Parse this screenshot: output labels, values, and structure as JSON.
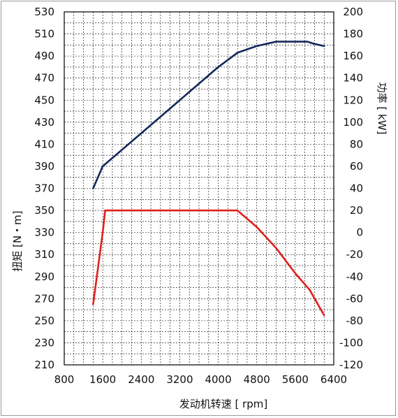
{
  "chart_data": {
    "type": "line",
    "title": "",
    "xlabel": "发动机转速 [ rpm]",
    "ylabel": "扭矩 [N・m]",
    "y2label": "功率 [ kW]",
    "xlim": [
      800,
      6400
    ],
    "ylim": [
      210,
      530
    ],
    "y2lim": [
      -120,
      200
    ],
    "x_ticks": [
      "800",
      "1600",
      "2400",
      "3200",
      "4000",
      "4800",
      "5600",
      "6400"
    ],
    "x_tick_values": [
      800,
      1600,
      2400,
      3200,
      4000,
      4800,
      5600,
      6400
    ],
    "y_ticks": [
      "210",
      "230",
      "250",
      "270",
      "290",
      "310",
      "330",
      "350",
      "370",
      "390",
      "410",
      "430",
      "450",
      "470",
      "490",
      "510",
      "530"
    ],
    "y_tick_values": [
      210,
      230,
      250,
      270,
      290,
      310,
      330,
      350,
      370,
      390,
      410,
      430,
      450,
      470,
      490,
      510,
      530
    ],
    "y2_ticks": [
      "200",
      "180",
      "160",
      "140",
      "120",
      "100",
      "80",
      "60",
      "40",
      "20",
      "0",
      "-20",
      "-40",
      "-60",
      "-80",
      "-100",
      "-120"
    ],
    "y2_tick_values": [
      200,
      180,
      160,
      140,
      120,
      100,
      80,
      60,
      40,
      20,
      0,
      -20,
      -40,
      -60,
      -80,
      -100,
      -120
    ],
    "grid": true,
    "legend": "none",
    "series": [
      {
        "axis": "y2",
        "color": "#14285a",
        "x": [
          1400,
          1600,
          2400,
          3200,
          4000,
          4400,
          4800,
          5200,
          5600,
          5850,
          6000,
          6200
        ],
        "y": [
          40,
          60,
          90,
          120,
          150,
          163,
          169,
          173,
          173,
          173,
          171,
          169
        ]
      },
      {
        "axis": "y",
        "color": "#e0201c",
        "x": [
          1400,
          1600,
          1650,
          2400,
          3200,
          4000,
          4400,
          4800,
          5200,
          5600,
          5900,
          6200
        ],
        "y": [
          265,
          330,
          350,
          350,
          350,
          350,
          350,
          335,
          316,
          293,
          278,
          255
        ]
      }
    ]
  }
}
